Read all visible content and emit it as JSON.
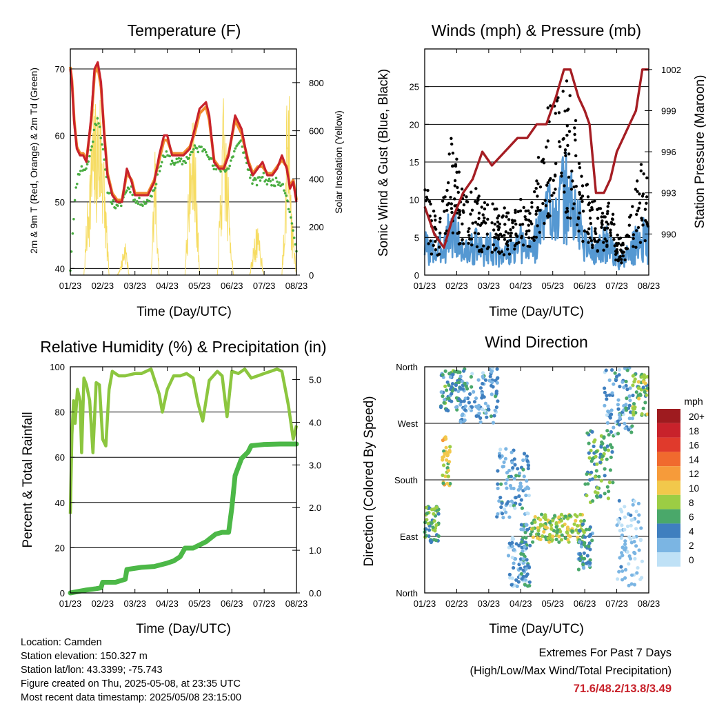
{
  "colors": {
    "temp2m": "#c8222b",
    "temp9m": "#f08a2e",
    "dewpoint": "#4aad42",
    "solar": "#f6dc62",
    "wind": "#5598d2",
    "gust": "#000000",
    "pressure": "#a51d23",
    "rh": "#8cc63f",
    "precip": "#4cb847",
    "gridline": "#000000",
    "extremes": "#c8222b"
  },
  "x_ticks": [
    "01/23",
    "02/23",
    "03/23",
    "04/23",
    "05/23",
    "06/23",
    "07/23",
    "08/23"
  ],
  "chart_data": [
    {
      "id": "temperature",
      "type": "line",
      "title": "Temperature (F)",
      "xlabel": "Time (Day/UTC)",
      "ylabel": "2m & 9m T (Red, Orange) & 2m Td (Green)",
      "y2label": "Solar Insolation (Yellow)",
      "x_range": [
        0,
        7
      ],
      "ylim": [
        39,
        73
      ],
      "y_ticks": [
        40,
        50,
        60,
        70
      ],
      "y2lim": [
        0,
        940
      ],
      "y2_ticks": [
        0,
        200,
        400,
        600,
        800
      ],
      "grid": "horizontal",
      "series": [
        {
          "key": "t2m",
          "x": [
            0,
            0.05,
            0.12,
            0.2,
            0.3,
            0.4,
            0.5,
            0.65,
            0.75,
            0.85,
            0.95,
            1.05,
            1.15,
            1.3,
            1.45,
            1.6,
            1.75,
            1.9,
            2.0,
            2.2,
            2.4,
            2.6,
            2.75,
            2.9,
            3.0,
            3.15,
            3.3,
            3.5,
            3.7,
            3.85,
            4.0,
            4.2,
            4.3,
            4.45,
            4.6,
            4.75,
            4.9,
            5.1,
            5.3,
            5.5,
            5.65,
            5.8,
            5.95,
            6.1,
            6.25,
            6.4,
            6.55,
            6.7,
            6.8,
            6.9,
            7.0
          ],
          "y": [
            70,
            68,
            62,
            58,
            57,
            57,
            56,
            63,
            70,
            71,
            68,
            60,
            54,
            51,
            50,
            50,
            55,
            53,
            51,
            51,
            51,
            53,
            57,
            60,
            60,
            57,
            57,
            57,
            58,
            61,
            64,
            65,
            63,
            56,
            55,
            55,
            57,
            63,
            61,
            56,
            54,
            55,
            56,
            54,
            54,
            55,
            57,
            55,
            52,
            53,
            50
          ]
        },
        {
          "key": "t9m",
          "x": [
            0,
            0.05,
            0.12,
            0.2,
            0.3,
            0.4,
            0.5,
            0.65,
            0.75,
            0.85,
            0.95,
            1.05,
            1.15,
            1.3,
            1.45,
            1.6,
            1.75,
            1.9,
            2.0,
            2.2,
            2.4,
            2.6,
            2.75,
            2.9,
            3.0,
            3.15,
            3.3,
            3.5,
            3.7,
            3.85,
            4.0,
            4.2,
            4.3,
            4.45,
            4.6,
            4.75,
            4.9,
            5.1,
            5.3,
            5.5,
            5.65,
            5.8,
            5.95,
            6.1,
            6.25,
            6.4,
            6.55,
            6.7,
            6.8,
            6.9,
            7.0
          ],
          "y": [
            70,
            68,
            62,
            58,
            57,
            57,
            56,
            62,
            69,
            70,
            67,
            60,
            54,
            51,
            50,
            50,
            54,
            53,
            51,
            51,
            51,
            53,
            56,
            59,
            59,
            57,
            57,
            57,
            58,
            60,
            63,
            64,
            62,
            56,
            55,
            55,
            57,
            62,
            60,
            56,
            54,
            55,
            55,
            54,
            54,
            55,
            56,
            55,
            52,
            53,
            50
          ]
        },
        {
          "key": "td2m",
          "x": [
            0,
            0.05,
            0.12,
            0.2,
            0.3,
            0.4,
            0.5,
            0.65,
            0.75,
            0.85,
            0.95,
            1.05,
            1.15,
            1.3,
            1.45,
            1.6,
            1.75,
            1.9,
            2.0,
            2.2,
            2.4,
            2.6,
            2.75,
            2.9,
            3.0,
            3.15,
            3.3,
            3.5,
            3.7,
            3.85,
            4.0,
            4.2,
            4.3,
            4.45,
            4.6,
            4.75,
            4.9,
            5.1,
            5.3,
            5.5,
            5.65,
            5.8,
            5.95,
            6.1,
            6.25,
            6.4,
            6.55,
            6.7,
            6.8,
            6.9,
            7.0
          ],
          "y": [
            40,
            44,
            49,
            53,
            55,
            55,
            55,
            58,
            61,
            63,
            60,
            56,
            52,
            50,
            49,
            50,
            52,
            52,
            50,
            50,
            50,
            52,
            55,
            57,
            57,
            56,
            56,
            56,
            57,
            58,
            58,
            58,
            57,
            55,
            55,
            55,
            55,
            58,
            59,
            55,
            53,
            53,
            54,
            53,
            53,
            53,
            53,
            51,
            48,
            46,
            42
          ]
        },
        {
          "key": "solar",
          "axis": "y2",
          "x": [
            0,
            0.2,
            0.42,
            0.55,
            0.7,
            0.95,
            1.2,
            1.45,
            1.55,
            1.7,
            1.82,
            2.0,
            2.25,
            2.5,
            2.62,
            2.75,
            3.0,
            3.25,
            3.55,
            3.7,
            3.85,
            4.0,
            4.25,
            4.55,
            4.75,
            4.9,
            5.05,
            5.3,
            5.55,
            5.75,
            5.85,
            6.0,
            6.3,
            6.55,
            6.75,
            6.85,
            7.0
          ],
          "y": [
            0,
            0,
            0,
            380,
            700,
            820,
            0,
            0,
            40,
            170,
            0,
            0,
            0,
            0,
            600,
            0,
            0,
            0,
            0,
            560,
            700,
            0,
            0,
            0,
            800,
            380,
            0,
            0,
            0,
            220,
            170,
            0,
            0,
            0,
            940,
            300,
            0
          ]
        }
      ]
    },
    {
      "id": "winds",
      "type": "scatter",
      "title": "Winds (mph) & Pressure (mb)",
      "xlabel": "Time (Day/UTC)",
      "ylabel": "Sonic Wind & Gust (Blue, Black)",
      "y2label": "Station Pressure (Maroon)",
      "x_range": [
        0,
        7
      ],
      "ylim": [
        0,
        30
      ],
      "y_ticks": [
        0,
        5,
        10,
        15,
        20,
        25
      ],
      "y2lim": [
        987,
        1003.5
      ],
      "y2_ticks": [
        990,
        993,
        996,
        999,
        1002
      ],
      "grid": "horizontal",
      "series": [
        {
          "key": "wind_mean",
          "x": [
            0,
            0.2,
            0.4,
            0.6,
            0.8,
            1.0,
            1.2,
            1.4,
            1.6,
            1.8,
            2.0,
            2.2,
            2.4,
            2.6,
            2.8,
            3.0,
            3.2,
            3.4,
            3.6,
            3.8,
            4.0,
            4.2,
            4.4,
            4.6,
            4.8,
            5.0,
            5.2,
            5.4,
            5.6,
            5.8,
            6.0,
            6.2,
            6.4,
            6.6,
            6.8,
            7.0
          ],
          "y": [
            4,
            3,
            3,
            4,
            6,
            5,
            3,
            3,
            4,
            3,
            4,
            3,
            3,
            3,
            3,
            4,
            3,
            4,
            6,
            8,
            10,
            9,
            10,
            9,
            7,
            4,
            4,
            3,
            4,
            4,
            2,
            2,
            3,
            4,
            5,
            4
          ]
        },
        {
          "key": "gust_mean",
          "x": [
            0,
            0.2,
            0.4,
            0.6,
            0.8,
            1.0,
            1.2,
            1.4,
            1.6,
            1.8,
            2.0,
            2.2,
            2.4,
            2.6,
            2.8,
            3.0,
            3.2,
            3.4,
            3.6,
            3.8,
            4.0,
            4.2,
            4.4,
            4.6,
            4.8,
            5.0,
            5.2,
            5.4,
            5.6,
            5.8,
            6.0,
            6.2,
            6.4,
            6.6,
            6.8,
            7.0
          ],
          "y": [
            9,
            6,
            5,
            8,
            12,
            10,
            7,
            7,
            8,
            6,
            7,
            6,
            6,
            6,
            6,
            7,
            6,
            8,
            11,
            15,
            17,
            15,
            17,
            16,
            13,
            8,
            8,
            6,
            7,
            7,
            4,
            3,
            5,
            8,
            10,
            8
          ]
        },
        {
          "key": "pressure",
          "axis": "y2",
          "x": [
            0,
            0.3,
            0.6,
            0.85,
            1.2,
            1.5,
            1.8,
            2.1,
            2.5,
            2.9,
            3.2,
            3.5,
            3.8,
            4.1,
            4.35,
            4.55,
            4.8,
            5.0,
            5.15,
            5.35,
            5.6,
            5.8,
            6.0,
            6.2,
            6.4,
            6.6,
            6.8,
            6.9,
            7.0
          ],
          "y": [
            992,
            990,
            989,
            991,
            993,
            994,
            996,
            995,
            996,
            997,
            997,
            998,
            998,
            1000,
            1002,
            1002,
            1000,
            999,
            998,
            993,
            993,
            994,
            996,
            997,
            998,
            999,
            1002,
            1002,
            1002
          ]
        }
      ]
    },
    {
      "id": "humidity",
      "type": "line",
      "title": "Relative Humidity (%) & Precipitation (in)",
      "xlabel": "Time (Day/UTC)",
      "ylabel": "Percent & Total Rainfall",
      "x_range": [
        0,
        7
      ],
      "ylim": [
        0,
        100
      ],
      "y_ticks": [
        0,
        20,
        40,
        60,
        80,
        100
      ],
      "y2lim": [
        0,
        5.3
      ],
      "y2_ticks": [
        "0.0",
        "1.0",
        "2.0",
        "3.0",
        "4.0",
        "5.0"
      ],
      "grid": "horizontal",
      "series": [
        {
          "key": "rh",
          "x": [
            0,
            0.05,
            0.1,
            0.15,
            0.22,
            0.3,
            0.35,
            0.42,
            0.5,
            0.6,
            0.7,
            0.8,
            0.9,
            1.0,
            1.1,
            1.2,
            1.3,
            1.5,
            1.7,
            2.0,
            2.2,
            2.5,
            2.75,
            2.85,
            3.0,
            3.2,
            3.4,
            3.6,
            3.8,
            3.95,
            4.1,
            4.3,
            4.55,
            4.7,
            4.85,
            5.0,
            5.2,
            5.4,
            5.6,
            5.8,
            6.0,
            6.2,
            6.4,
            6.55,
            6.75,
            6.9,
            7.0
          ],
          "y": [
            35,
            70,
            85,
            75,
            90,
            85,
            62,
            95,
            92,
            85,
            62,
            93,
            92,
            68,
            65,
            90,
            98,
            96,
            96,
            97,
            97,
            99,
            88,
            80,
            90,
            96,
            96,
            97,
            95,
            84,
            76,
            94,
            98,
            96,
            78,
            98,
            97,
            99,
            95,
            96,
            97,
            98,
            99,
            98,
            83,
            68,
            74
          ]
        },
        {
          "key": "precip_total",
          "x": [
            0,
            0.5,
            0.8,
            0.95,
            1.0,
            1.4,
            1.7,
            1.75,
            2.2,
            2.6,
            3.0,
            3.2,
            3.4,
            3.55,
            3.8,
            4.2,
            4.5,
            4.7,
            4.9,
            5.0,
            5.1,
            5.3,
            5.5,
            5.6,
            6.0,
            6.5,
            7.0
          ],
          "y": [
            0,
            0.07,
            0.1,
            0.12,
            0.25,
            0.25,
            0.32,
            0.55,
            0.6,
            0.62,
            0.7,
            0.75,
            0.85,
            1.05,
            1.05,
            1.2,
            1.38,
            1.42,
            1.42,
            2.0,
            2.75,
            3.15,
            3.3,
            3.45,
            3.48,
            3.49,
            3.49
          ]
        }
      ]
    },
    {
      "id": "direction",
      "type": "scatter",
      "title": "Wind Direction",
      "xlabel": "Time (Day/UTC)",
      "ylabel": "Direction (Colored By Speed)",
      "x_range": [
        0,
        7
      ],
      "y_ticks": [
        "North",
        "East",
        "South",
        "West",
        "North"
      ],
      "grid": "horizontal",
      "colorbar_title": "mph",
      "colorbar_labels": [
        "20+",
        "18",
        "16",
        "14",
        "12",
        "10",
        "8",
        "6",
        "4",
        "2",
        "0"
      ],
      "colorbar_colors": [
        "#9e1b1f",
        "#c8222b",
        "#e03a2c",
        "#f06a2e",
        "#f69b3a",
        "#f2c84b",
        "#9ccd44",
        "#4aa86a",
        "#3f7fbf",
        "#7bb5e3",
        "#bfe1f6"
      ],
      "clusters": [
        {
          "x0": 0.0,
          "x1": 0.45,
          "dir0": 80,
          "dir1": 140,
          "speed": 6
        },
        {
          "x0": 0.55,
          "x1": 0.8,
          "dir0": 170,
          "dir1": 250,
          "speed": 9
        },
        {
          "x0": 0.5,
          "x1": 1.15,
          "dir0": 290,
          "dir1": 355,
          "speed": 5
        },
        {
          "x0": 1.1,
          "x1": 2.35,
          "dir0": 270,
          "dir1": 360,
          "speed": 3
        },
        {
          "x0": 2.25,
          "x1": 3.3,
          "dir0": 120,
          "dir1": 230,
          "speed": 3
        },
        {
          "x0": 2.6,
          "x1": 3.2,
          "dir0": 10,
          "dir1": 90,
          "speed": 2
        },
        {
          "x0": 3.0,
          "x1": 3.3,
          "dir0": 10,
          "dir1": 110,
          "speed": 4
        },
        {
          "x0": 3.3,
          "x1": 5.0,
          "dir0": 80,
          "dir1": 125,
          "speed": 8
        },
        {
          "x0": 4.8,
          "x1": 5.25,
          "dir0": 30,
          "dir1": 110,
          "speed": 4
        },
        {
          "x0": 5.0,
          "x1": 5.9,
          "dir0": 140,
          "dir1": 260,
          "speed": 6
        },
        {
          "x0": 5.6,
          "x1": 6.5,
          "dir0": 250,
          "dir1": 360,
          "speed": 3
        },
        {
          "x0": 6.5,
          "x1": 7.0,
          "dir0": 280,
          "dir1": 350,
          "speed": 7
        },
        {
          "x0": 6.0,
          "x1": 6.8,
          "dir0": 10,
          "dir1": 150,
          "speed": 1
        }
      ]
    }
  ],
  "info": {
    "location": "Location: Camden",
    "elevation": "Station elevation: 150.327 m",
    "latlon": "Station lat/lon: 43.3399; -75.743",
    "created": "Figure created on Thu, 2025-05-08, at 23:35 UTC",
    "recent": "Most recent data timestamp: 2025/05/08 23:15:00"
  },
  "extremes": {
    "title": "Extremes For Past 7 Days",
    "subtitle": "(High/Low/Max Wind/Total Precipitation)",
    "values": "71.6/48.2/13.8/3.49"
  }
}
